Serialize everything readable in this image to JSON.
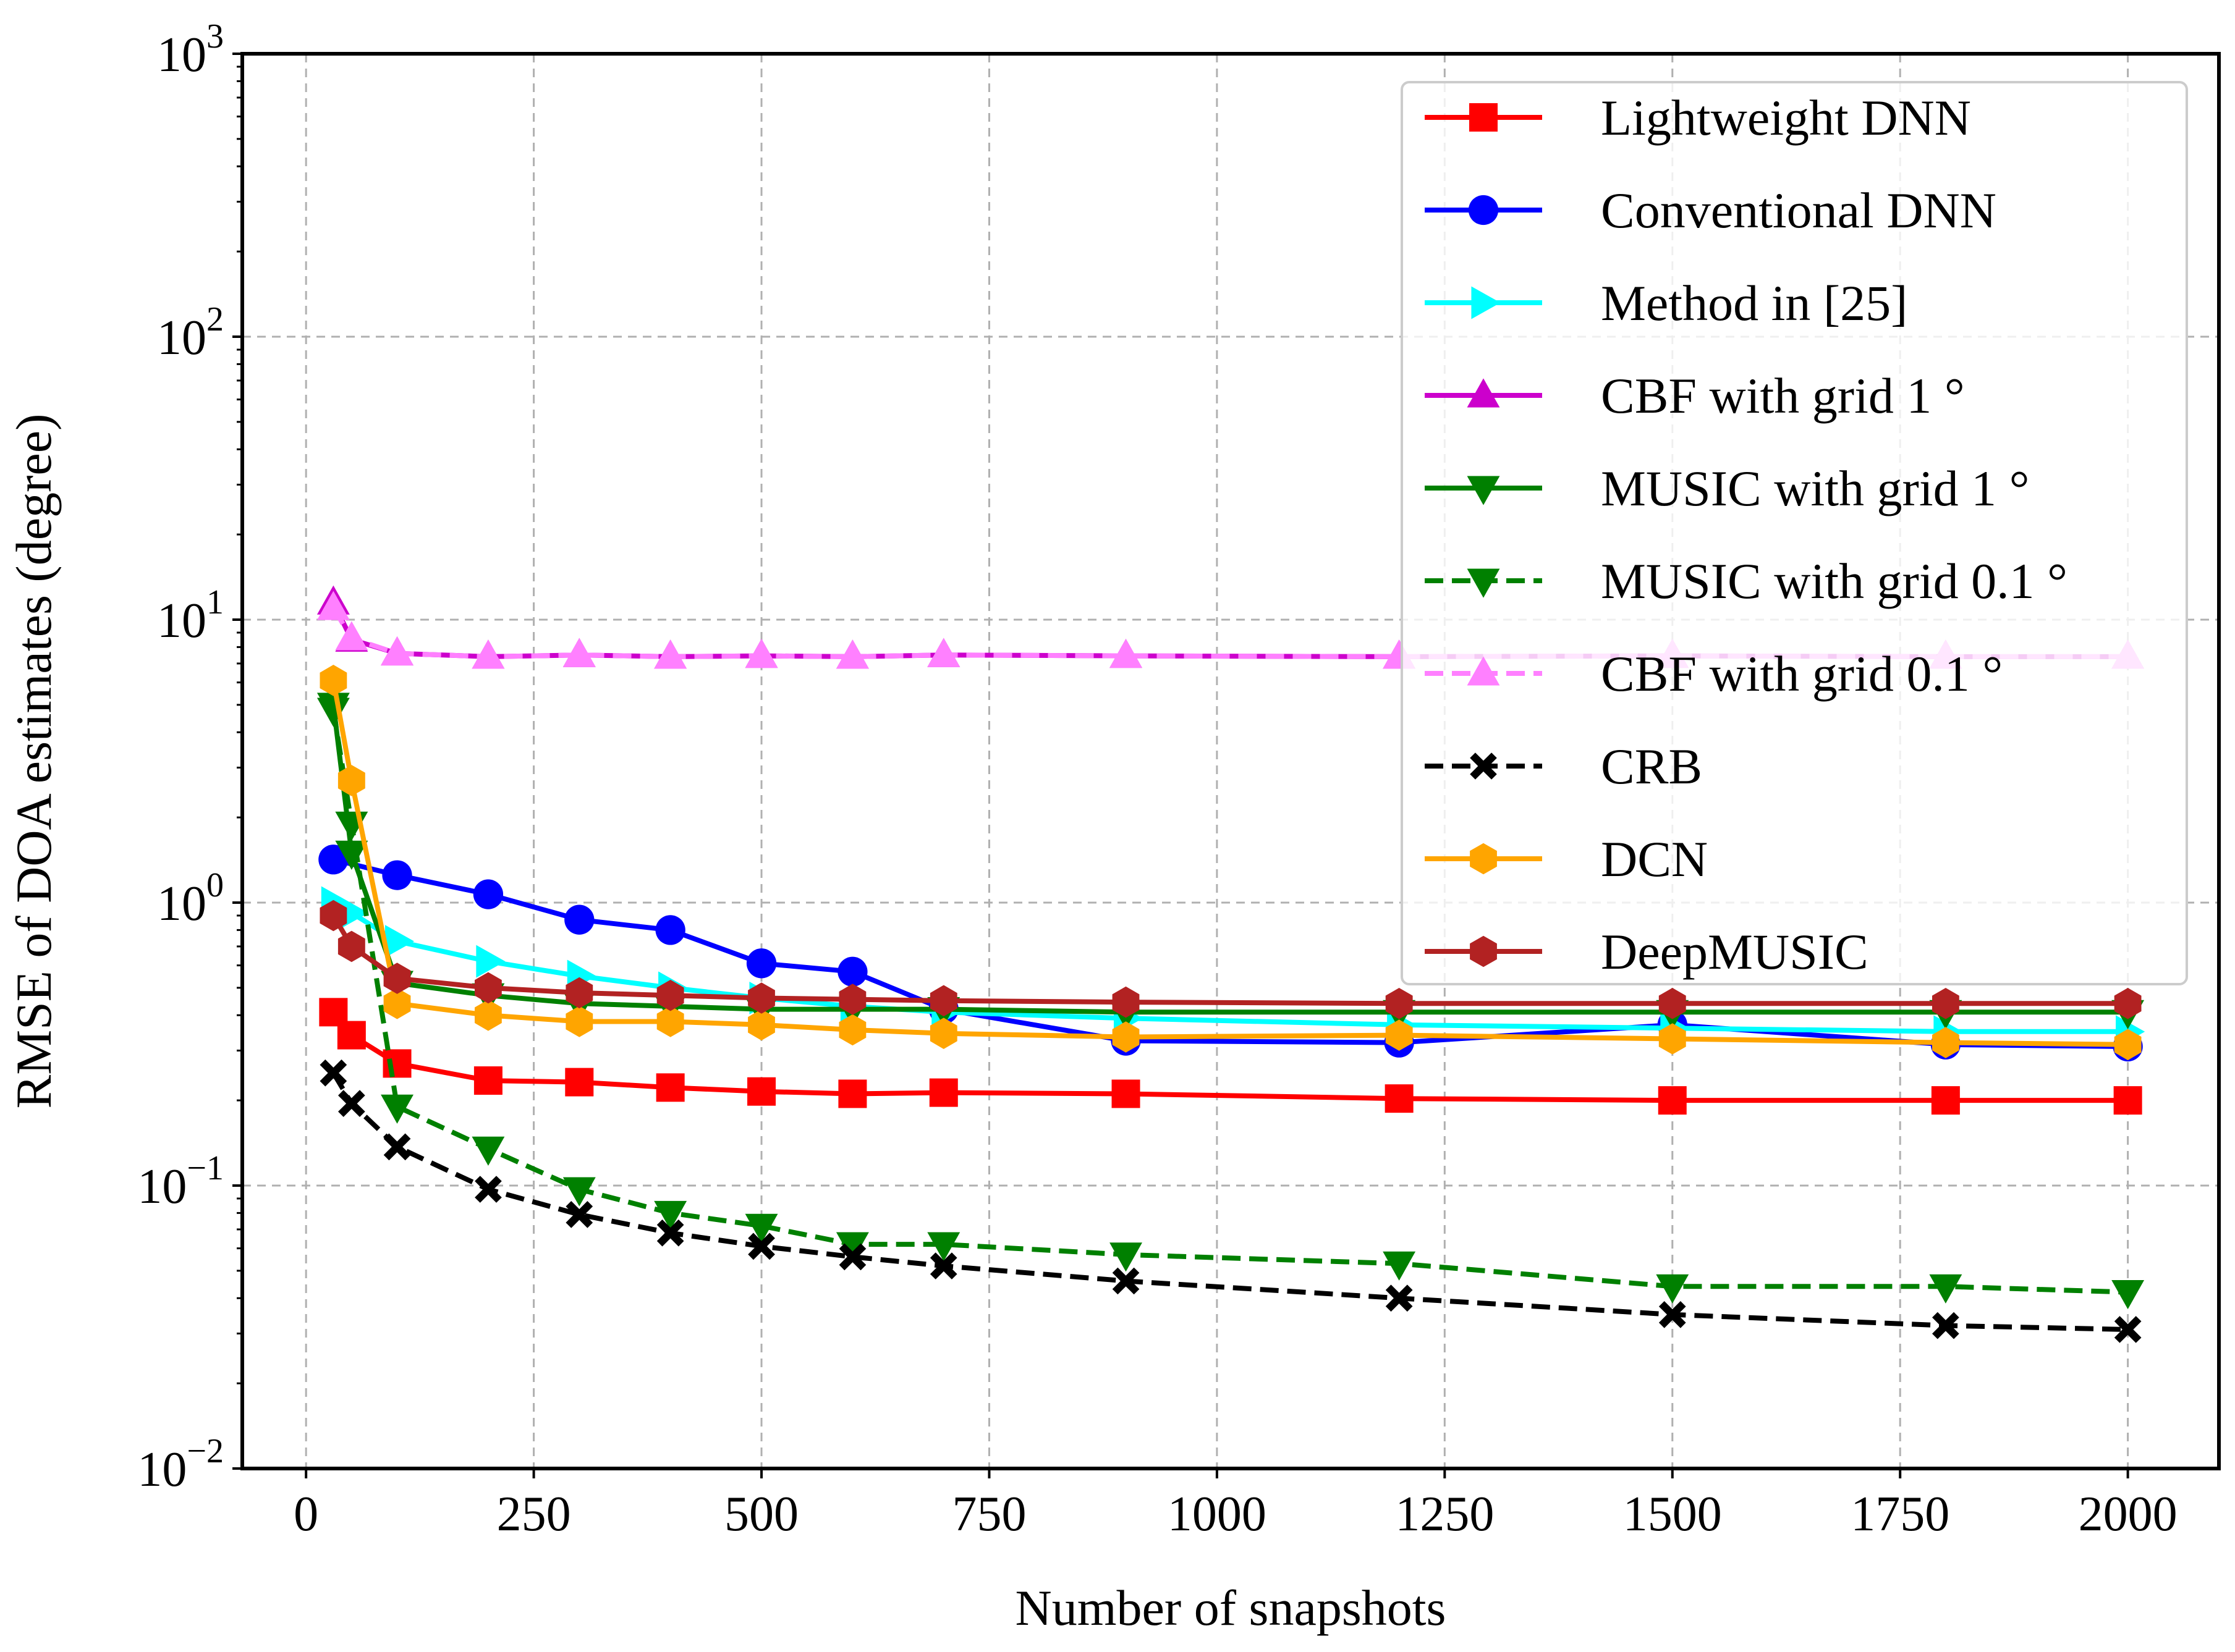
{
  "chart_data": {
    "type": "line",
    "title": "",
    "xlabel": "Number of snapshots",
    "ylabel": "RMSE of DOA estimates (degree)",
    "xlim": [
      -70,
      2100
    ],
    "ylim": [
      0.01,
      1000
    ],
    "yscale": "log",
    "grid": true,
    "legend_position": "top-right",
    "x_ticks": [
      {
        "value": 0,
        "label": "0"
      },
      {
        "value": 250,
        "label": "250"
      },
      {
        "value": 500,
        "label": "500"
      },
      {
        "value": 750,
        "label": "750"
      },
      {
        "value": 1000,
        "label": "1000"
      },
      {
        "value": 1250,
        "label": "1250"
      },
      {
        "value": 1500,
        "label": "1500"
      },
      {
        "value": 1750,
        "label": "1750"
      },
      {
        "value": 2000,
        "label": "2000"
      }
    ],
    "y_ticks": [
      {
        "value": 0.01,
        "base": "10",
        "exp": "−2"
      },
      {
        "value": 0.1,
        "base": "10",
        "exp": "−1"
      },
      {
        "value": 1,
        "base": "10",
        "exp": "0"
      },
      {
        "value": 10,
        "base": "10",
        "exp": "1"
      },
      {
        "value": 100,
        "base": "10",
        "exp": "2"
      },
      {
        "value": 1000,
        "base": "10",
        "exp": "3"
      }
    ],
    "series": [
      {
        "name": "Lightweight DNN",
        "color": "#ff0000",
        "dash": "solid",
        "marker": "square",
        "x": [
          30,
          50,
          100,
          200,
          300,
          400,
          500,
          600,
          700,
          900,
          1200,
          1500,
          1800,
          2000
        ],
        "y": [
          0.41,
          0.34,
          0.27,
          0.235,
          0.232,
          0.222,
          0.215,
          0.211,
          0.213,
          0.211,
          0.203,
          0.2,
          0.2,
          0.2
        ]
      },
      {
        "name": "Conventional DNN",
        "color": "#0000ff",
        "dash": "solid",
        "marker": "circle",
        "x": [
          30,
          100,
          200,
          300,
          400,
          500,
          600,
          700,
          900,
          1200,
          1500,
          1800,
          2000
        ],
        "y": [
          1.42,
          1.25,
          1.07,
          0.87,
          0.8,
          0.61,
          0.57,
          0.42,
          0.325,
          0.32,
          0.37,
          0.315,
          0.31
        ]
      },
      {
        "name": "Method in [25]",
        "color": "#00ffff",
        "dash": "solid",
        "marker": "triangle-right",
        "x": [
          30,
          50,
          100,
          200,
          300,
          400,
          500,
          600,
          700,
          900,
          1200,
          1500,
          1800,
          2000
        ],
        "y": [
          1.0,
          0.92,
          0.73,
          0.62,
          0.55,
          0.5,
          0.46,
          0.43,
          0.41,
          0.39,
          0.37,
          0.36,
          0.35,
          0.35
        ]
      },
      {
        "name": "CBF with grid 1 °",
        "color": "#cc00cc",
        "dash": "solid",
        "marker": "triangle-up",
        "x": [
          30,
          50,
          100,
          200,
          300,
          400,
          500,
          600,
          700,
          900,
          1200,
          1500,
          1800,
          2000
        ],
        "y": [
          11.5,
          8.5,
          7.6,
          7.4,
          7.5,
          7.4,
          7.45,
          7.4,
          7.5,
          7.45,
          7.4,
          7.45,
          7.4,
          7.4
        ]
      },
      {
        "name": "MUSIC with grid 1 °",
        "color": "#008000",
        "dash": "solid",
        "marker": "triangle-down",
        "x": [
          30,
          50,
          100,
          200,
          300,
          400,
          500,
          600,
          700,
          900,
          1200,
          1500,
          1800,
          2000
        ],
        "y": [
          5.0,
          1.5,
          0.52,
          0.47,
          0.44,
          0.43,
          0.42,
          0.42,
          0.42,
          0.41,
          0.41,
          0.41,
          0.41,
          0.41
        ]
      },
      {
        "name": "MUSIC with grid 0.1 °",
        "color": "#008000",
        "dash": "dashed",
        "marker": "triangle-down",
        "x": [
          30,
          50,
          100,
          200,
          300,
          400,
          500,
          600,
          700,
          900,
          1200,
          1500,
          1800,
          2000
        ],
        "y": [
          4.8,
          1.9,
          0.19,
          0.135,
          0.097,
          0.08,
          0.072,
          0.062,
          0.062,
          0.057,
          0.053,
          0.044,
          0.044,
          0.042
        ]
      },
      {
        "name": "CBF with grid 0.1 °",
        "color": "#ff80ff",
        "dash": "dashed",
        "marker": "triangle-up",
        "x": [
          30,
          50,
          100,
          200,
          300,
          400,
          500,
          600,
          700,
          900,
          1200,
          1500,
          1800,
          2000
        ],
        "y": [
          11.0,
          8.6,
          7.6,
          7.4,
          7.5,
          7.4,
          7.45,
          7.4,
          7.5,
          7.45,
          7.4,
          7.45,
          7.4,
          7.4
        ]
      },
      {
        "name": "CRB",
        "color": "#000000",
        "dash": "dashed",
        "marker": "x",
        "x": [
          30,
          50,
          100,
          200,
          300,
          400,
          500,
          600,
          700,
          900,
          1200,
          1500,
          1800,
          2000
        ],
        "y": [
          0.25,
          0.195,
          0.137,
          0.097,
          0.079,
          0.068,
          0.061,
          0.056,
          0.052,
          0.046,
          0.04,
          0.035,
          0.032,
          0.031
        ]
      },
      {
        "name": "DCN",
        "color": "#ffa500",
        "dash": "solid",
        "marker": "hexagon",
        "x": [
          30,
          50,
          100,
          200,
          300,
          400,
          500,
          600,
          700,
          900,
          1200,
          1500,
          1800,
          2000
        ],
        "y": [
          6.1,
          2.7,
          0.44,
          0.4,
          0.38,
          0.38,
          0.37,
          0.355,
          0.345,
          0.335,
          0.34,
          0.33,
          0.32,
          0.315
        ]
      },
      {
        "name": "DeepMUSIC",
        "color": "#b22222",
        "dash": "solid",
        "marker": "hexagon",
        "x": [
          30,
          50,
          100,
          200,
          300,
          400,
          500,
          600,
          700,
          900,
          1200,
          1500,
          1800,
          2000
        ],
        "y": [
          0.9,
          0.7,
          0.54,
          0.5,
          0.48,
          0.47,
          0.46,
          0.455,
          0.45,
          0.445,
          0.44,
          0.44,
          0.44,
          0.44
        ]
      }
    ]
  }
}
